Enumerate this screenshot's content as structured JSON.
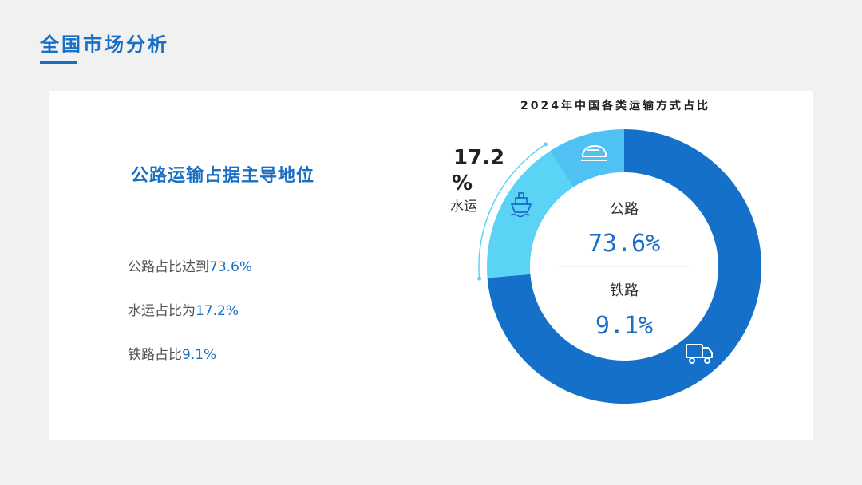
{
  "page": {
    "title": "全国市场分析"
  },
  "content": {
    "headline": "公路运输占据主导地位",
    "stats": [
      {
        "text": "公路占比达到",
        "value": "73.6%"
      },
      {
        "text": "水运占比为",
        "value": "17.2%"
      },
      {
        "text": "铁路占比",
        "value": "9.1%"
      }
    ]
  },
  "colors": {
    "accent": "#1a6fc4",
    "road": "#1470c8",
    "water": "#5bd3f5",
    "rail": "#4fc1f3"
  },
  "icons": {
    "road": "truck-icon",
    "water": "ship-icon",
    "rail": "train-icon"
  },
  "chart_data": {
    "type": "pie",
    "style": "donut",
    "title": "2024年中国各类运输方式占比",
    "slices": [
      {
        "name": "公路",
        "value": 73.6,
        "label": "73.6%",
        "color": "#1470c8",
        "icon": "truck-icon"
      },
      {
        "name": "水运",
        "value": 17.2,
        "label": "17.2%",
        "color": "#5bd3f5",
        "icon": "ship-icon"
      },
      {
        "name": "铁路",
        "value": 9.1,
        "label": "9.1%",
        "color": "#4fc1f3",
        "icon": "train-icon"
      }
    ],
    "center_labels": [
      {
        "name": "公路",
        "label": "73.6%"
      },
      {
        "name": "铁路",
        "label": "9.1%"
      }
    ],
    "callout": {
      "name": "水运",
      "value_text": "17.2",
      "unit": "%"
    }
  }
}
